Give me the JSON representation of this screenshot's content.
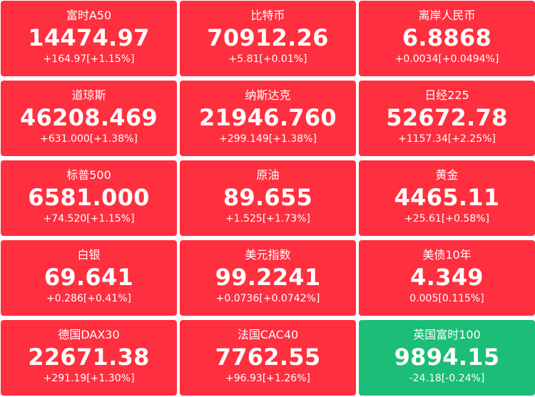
{
  "colors": {
    "up": "#fe2f3e",
    "down": "#1bbd77",
    "text": "#ffffff"
  },
  "tiles": [
    {
      "name": "富时A50",
      "price": "14474.97",
      "change": "+164.97[+1.15%]",
      "trend": "up"
    },
    {
      "name": "比特币",
      "price": "70912.26",
      "change": "+5.81[+0.01%]",
      "trend": "up"
    },
    {
      "name": "离岸人民币",
      "price": "6.8868",
      "change": "+0.0034[+0.0494%]",
      "trend": "up"
    },
    {
      "name": "道琼斯",
      "price": "46208.469",
      "change": "+631.000[+1.38%]",
      "trend": "up"
    },
    {
      "name": "纳斯达克",
      "price": "21946.760",
      "change": "+299.149[+1.38%]",
      "trend": "up"
    },
    {
      "name": "日经225",
      "price": "52672.78",
      "change": "+1157.34[+2.25%]",
      "trend": "up"
    },
    {
      "name": "标普500",
      "price": "6581.000",
      "change": "+74.520[+1.15%]",
      "trend": "up"
    },
    {
      "name": "原油",
      "price": "89.655",
      "change": "+1.525[+1.73%]",
      "trend": "up"
    },
    {
      "name": "黄金",
      "price": "4465.11",
      "change": "+25.61[+0.58%]",
      "trend": "up"
    },
    {
      "name": "白银",
      "price": "69.641",
      "change": "+0.286[+0.41%]",
      "trend": "up"
    },
    {
      "name": "美元指数",
      "price": "99.2241",
      "change": "+0.0736[+0.0742%]",
      "trend": "up"
    },
    {
      "name": "美债10年",
      "price": "4.349",
      "change": "0.005[0.115%]",
      "trend": "up"
    },
    {
      "name": "德国DAX30",
      "price": "22671.38",
      "change": "+291.19[+1.30%]",
      "trend": "up"
    },
    {
      "name": "法国CAC40",
      "price": "7762.55",
      "change": "+96.93[+1.26%]",
      "trend": "up"
    },
    {
      "name": "英国富时100",
      "price": "9894.15",
      "change": "-24.18[-0.24%]",
      "trend": "down"
    }
  ]
}
